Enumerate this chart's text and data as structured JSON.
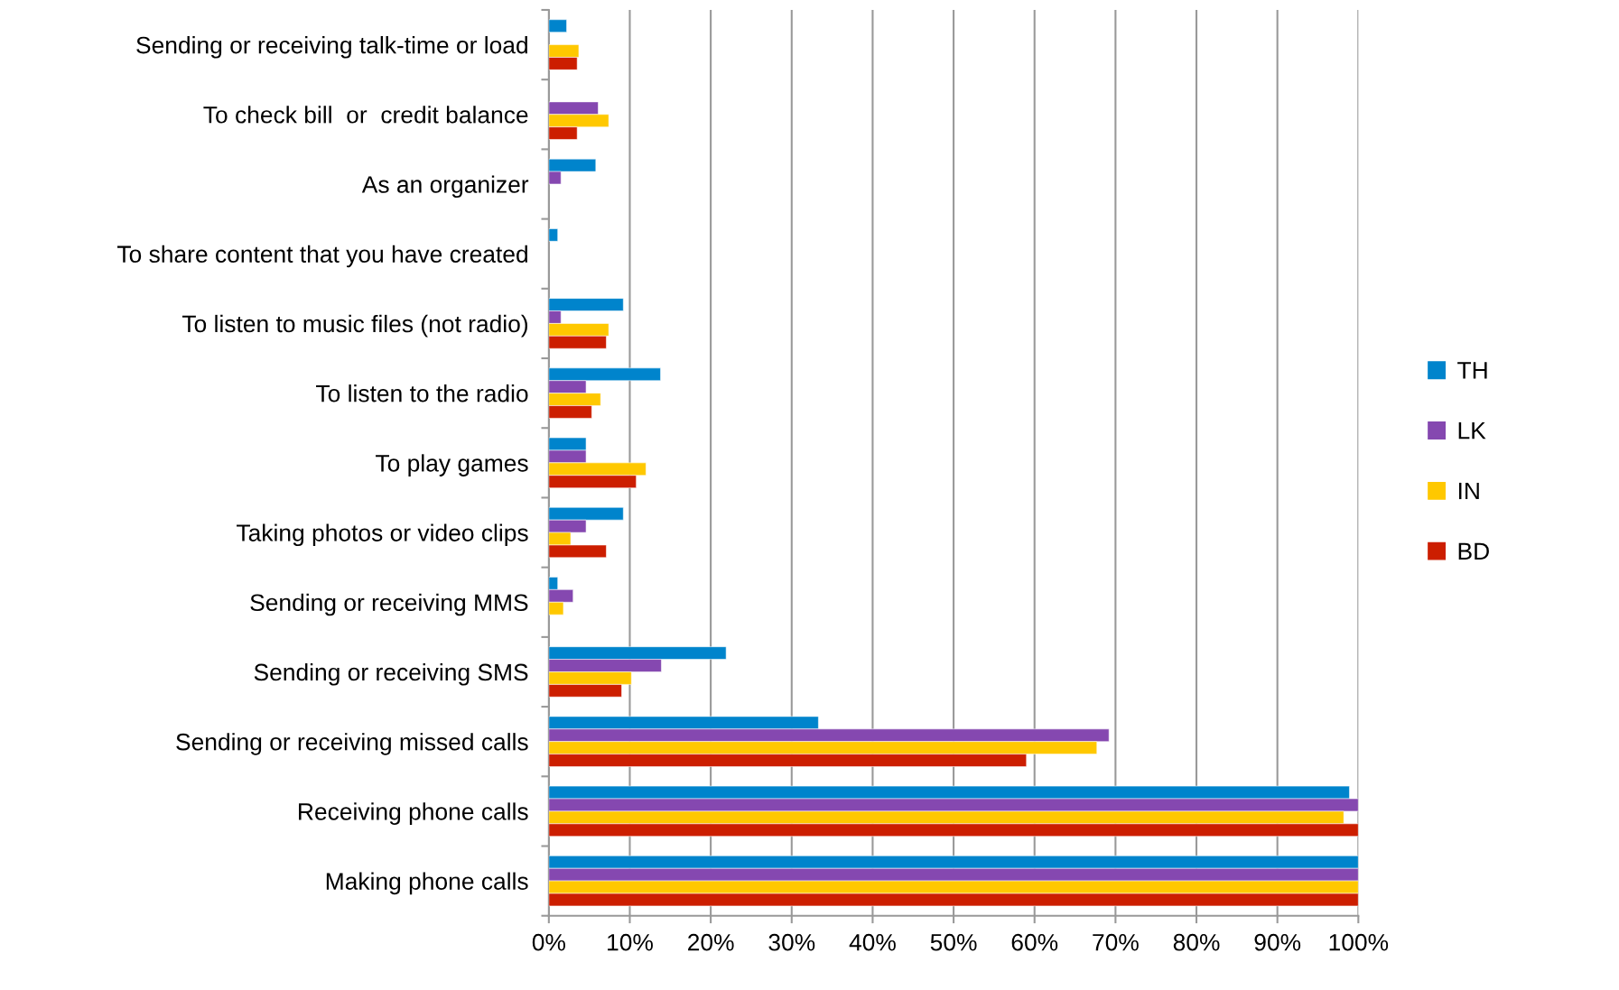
{
  "chart_data": {
    "type": "bar",
    "orientation": "horizontal",
    "categories": [
      "Sending or receiving talk-time or load",
      "To check bill  or  credit balance",
      "As an organizer",
      "To share content that you have created",
      "To listen to music files (not radio)",
      "To listen to the radio",
      "To play games",
      "Taking photos or video clips",
      "Sending or receiving MMS",
      "Sending or receiving SMS",
      "Sending or receiving missed calls",
      "Receiving phone calls",
      "Making phone calls"
    ],
    "series": [
      {
        "name": "TH",
        "color": "#0084cc",
        "values": [
          2.2,
          null,
          5.8,
          1.1,
          9.2,
          13.8,
          4.6,
          9.2,
          1.1,
          21.9,
          33.3,
          98.9,
          100
        ]
      },
      {
        "name": "LK",
        "color": "#8548b0",
        "values": [
          null,
          6.1,
          1.5,
          null,
          1.5,
          4.6,
          4.6,
          4.6,
          3.0,
          13.9,
          69.2,
          100,
          100
        ]
      },
      {
        "name": "IN",
        "color": "#ffc800",
        "values": [
          3.7,
          7.4,
          null,
          null,
          7.4,
          6.4,
          12.0,
          2.7,
          1.8,
          10.2,
          67.7,
          98.2,
          100
        ]
      },
      {
        "name": "BD",
        "color": "#cc1e00",
        "values": [
          3.5,
          3.5,
          null,
          null,
          7.1,
          5.3,
          10.8,
          7.1,
          null,
          9.0,
          59.0,
          100,
          100
        ]
      }
    ],
    "xlim": [
      0,
      100
    ],
    "xticks": [
      {
        "value": 0,
        "label": "0%"
      },
      {
        "value": 10,
        "label": "10%"
      },
      {
        "value": 20,
        "label": "20%"
      },
      {
        "value": 30,
        "label": "30%"
      },
      {
        "value": 40,
        "label": "40%"
      },
      {
        "value": 50,
        "label": "50%"
      },
      {
        "value": 60,
        "label": "60%"
      },
      {
        "value": 70,
        "label": "70%"
      },
      {
        "value": 80,
        "label": "80%"
      },
      {
        "value": 90,
        "label": "90%"
      },
      {
        "value": 100,
        "label": "100%"
      }
    ],
    "grid": "x",
    "legend": "right"
  }
}
